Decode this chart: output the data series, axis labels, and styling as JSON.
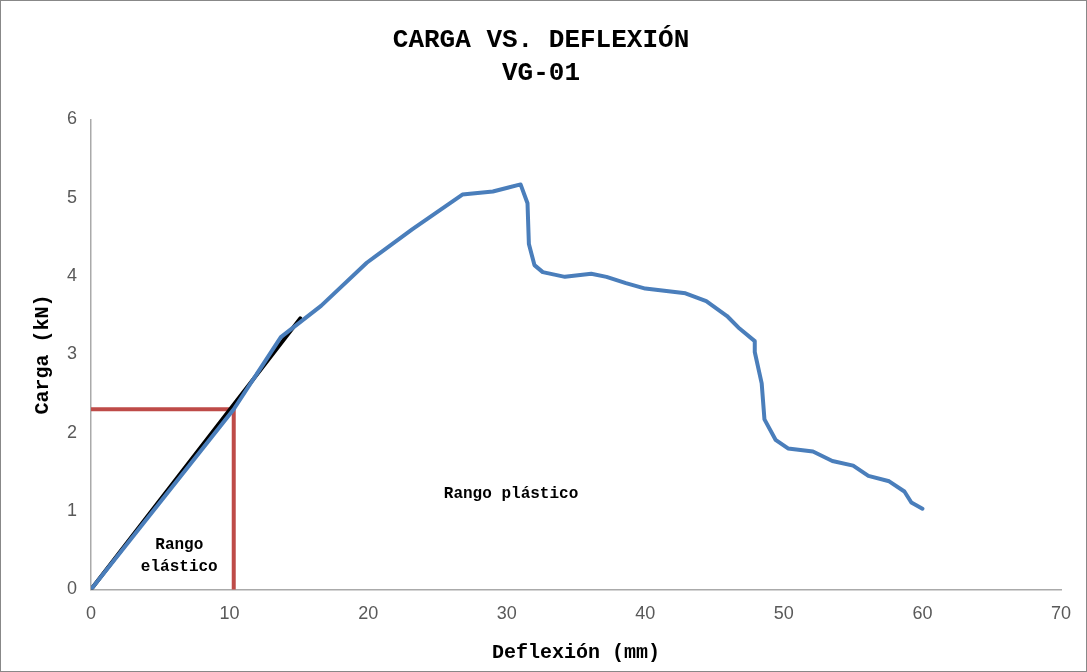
{
  "chart_data": {
    "type": "line",
    "title": "CARGA VS. DEFLEXIÓN",
    "subtitle": "VG-01",
    "xlabel": "Deflexión (mm)",
    "ylabel": "Carga (kN)",
    "xlim": [
      0,
      70
    ],
    "xticks": [
      0,
      10,
      20,
      30,
      40,
      50,
      60,
      70
    ],
    "ylim": [
      0,
      6
    ],
    "yticks": [
      0,
      1,
      2,
      3,
      4,
      5,
      6
    ],
    "grid": false,
    "legend": false,
    "marker": "none",
    "line_style": "solid",
    "series": [
      {
        "color": "#4a7ebb",
        "x": [
          0,
          10.3,
          13.7,
          16.6,
          19.9,
          23.2,
          26.8,
          29.0,
          31.0,
          31.5,
          31.6,
          32.0,
          32.6,
          34.2,
          36.1,
          37.2,
          38.6,
          40.0,
          42.9,
          44.4,
          45.9,
          46.8,
          47.9,
          47.9,
          48.4,
          48.6,
          49.4,
          50.3,
          52.1,
          53.5,
          55.0,
          56.1,
          57.6,
          58.7,
          59.2,
          60.0
        ],
        "values": [
          0,
          2.3,
          3.22,
          3.62,
          4.17,
          4.6,
          5.04,
          5.08,
          5.17,
          4.93,
          4.41,
          4.14,
          4.05,
          3.99,
          4.03,
          3.99,
          3.91,
          3.84,
          3.78,
          3.68,
          3.49,
          3.33,
          3.17,
          3.03,
          2.63,
          2.17,
          1.91,
          1.8,
          1.76,
          1.64,
          1.58,
          1.45,
          1.38,
          1.25,
          1.11,
          1.03
        ]
      },
      {
        "color": "#000000",
        "x": [
          0,
          15.1
        ],
        "values": [
          0,
          3.46
        ]
      },
      {
        "color": "#be4b48",
        "x": [
          0,
          10.3,
          10.3
        ],
        "values": [
          2.3,
          2.3,
          0
        ]
      }
    ],
    "annotations": [
      "Rango elástico",
      "Rango plástico"
    ]
  }
}
